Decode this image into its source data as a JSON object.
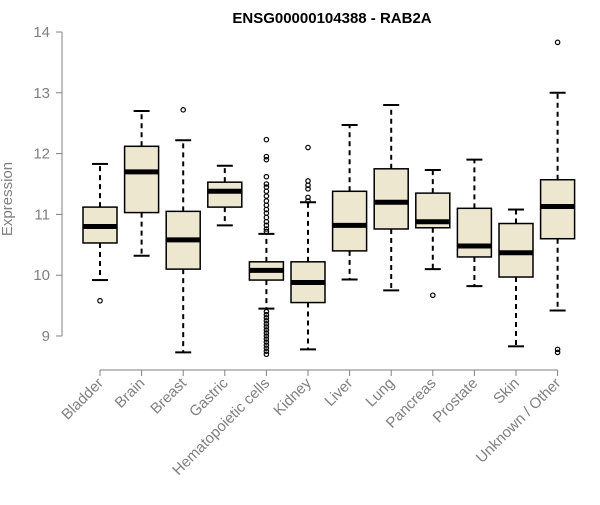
{
  "chart_data": {
    "type": "boxplot",
    "title": "ENSG00000104388 - RAB2A",
    "xlabel": "",
    "ylabel": "Expression",
    "ylim": [
      8.6,
      14.1
    ],
    "yticks": [
      9,
      10,
      11,
      12,
      13,
      14
    ],
    "colors": {
      "box_fill": "#ede7cf",
      "box_stroke": "#000000",
      "median": "#000000",
      "axis": "#808080"
    },
    "categories": [
      "Bladder",
      "Brain",
      "Breast",
      "Gastric",
      "Hematopoietic cells",
      "Kidney",
      "Liver",
      "Lung",
      "Pancreas",
      "Prostate",
      "Skin",
      "Unknown / Other"
    ],
    "boxes": [
      {
        "name": "Bladder",
        "whisker_low": 9.92,
        "q1": 10.53,
        "median": 10.8,
        "q3": 11.12,
        "whisker_high": 11.83,
        "outliers": [
          9.58
        ]
      },
      {
        "name": "Brain",
        "whisker_low": 10.32,
        "q1": 11.03,
        "median": 11.7,
        "q3": 12.12,
        "whisker_high": 12.7,
        "outliers": []
      },
      {
        "name": "Breast",
        "whisker_low": 8.73,
        "q1": 10.1,
        "median": 10.58,
        "q3": 11.05,
        "whisker_high": 12.22,
        "outliers": [
          12.72
        ]
      },
      {
        "name": "Gastric",
        "whisker_low": 10.82,
        "q1": 11.12,
        "median": 11.38,
        "q3": 11.53,
        "whisker_high": 11.8,
        "outliers": []
      },
      {
        "name": "Hematopoietic cells",
        "whisker_low": 9.45,
        "q1": 9.92,
        "median": 10.08,
        "q3": 10.22,
        "whisker_high": 10.68,
        "outliers": [
          12.23,
          11.95,
          11.9,
          11.62,
          11.5,
          11.45,
          11.38,
          11.3,
          11.22,
          11.15,
          11.08,
          11.02,
          10.95,
          10.88,
          10.82,
          10.76,
          10.72,
          9.4,
          9.35,
          9.3,
          9.25,
          9.2,
          9.15,
          9.1,
          9.05,
          9.0,
          8.95,
          8.9,
          8.85,
          8.8,
          8.75,
          8.7
        ]
      },
      {
        "name": "Kidney",
        "whisker_low": 8.78,
        "q1": 9.55,
        "median": 9.88,
        "q3": 10.22,
        "whisker_high": 11.2,
        "outliers": [
          12.1,
          11.55,
          11.48,
          11.42,
          11.28,
          11.22
        ]
      },
      {
        "name": "Liver",
        "whisker_low": 9.93,
        "q1": 10.4,
        "median": 10.82,
        "q3": 11.38,
        "whisker_high": 12.47,
        "outliers": []
      },
      {
        "name": "Lung",
        "whisker_low": 9.75,
        "q1": 10.76,
        "median": 11.2,
        "q3": 11.75,
        "whisker_high": 12.8,
        "outliers": []
      },
      {
        "name": "Pancreas",
        "whisker_low": 10.1,
        "q1": 10.78,
        "median": 10.88,
        "q3": 11.35,
        "whisker_high": 11.73,
        "outliers": [
          9.67
        ]
      },
      {
        "name": "Prostate",
        "whisker_low": 9.82,
        "q1": 10.3,
        "median": 10.48,
        "q3": 11.1,
        "whisker_high": 11.9,
        "outliers": []
      },
      {
        "name": "Skin",
        "whisker_low": 8.83,
        "q1": 9.97,
        "median": 10.37,
        "q3": 10.85,
        "whisker_high": 11.08,
        "outliers": []
      },
      {
        "name": "Unknown / Other",
        "whisker_low": 9.42,
        "q1": 10.6,
        "median": 11.13,
        "q3": 11.57,
        "whisker_high": 13.0,
        "outliers": [
          13.83,
          8.78,
          8.73
        ]
      }
    ]
  }
}
